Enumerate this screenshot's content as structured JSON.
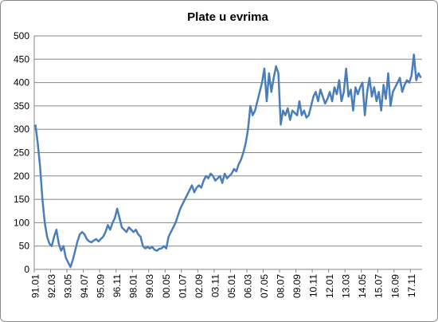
{
  "chart_data": {
    "type": "line",
    "title": "Plate u evrima",
    "categories": [
      "91.01",
      null,
      null,
      null,
      null,
      null,
      null,
      "92.03",
      null,
      null,
      null,
      null,
      null,
      null,
      "93.05",
      null,
      null,
      null,
      null,
      null,
      null,
      "94.07",
      null,
      null,
      null,
      null,
      null,
      null,
      "95.09",
      null,
      null,
      null,
      null,
      null,
      null,
      "96.11",
      null,
      null,
      null,
      null,
      null,
      null,
      "98.01",
      null,
      null,
      null,
      null,
      null,
      null,
      "99.03",
      null,
      null,
      null,
      null,
      null,
      null,
      "00.05",
      null,
      null,
      null,
      null,
      null,
      null,
      "01.07",
      null,
      null,
      null,
      null,
      null,
      null,
      "02.09",
      null,
      null,
      null,
      null,
      null,
      null,
      "03.11",
      null,
      null,
      null,
      null,
      null,
      null,
      "05.01",
      null,
      null,
      null,
      null,
      null,
      null,
      "06.03",
      null,
      null,
      null,
      null,
      null,
      null,
      "07.05",
      null,
      null,
      null,
      null,
      null,
      null,
      "08.07",
      null,
      null,
      null,
      null,
      null,
      null,
      "09.09",
      null,
      null,
      null,
      null,
      null,
      null,
      "10.11",
      null,
      null,
      null,
      null,
      null,
      null,
      "12.01",
      null,
      null,
      null,
      null,
      null,
      null,
      "13.03",
      null,
      null,
      null,
      null,
      null,
      null,
      "14.05",
      null,
      null,
      null,
      null,
      null,
      null,
      "15.07",
      null,
      null,
      null,
      null,
      null,
      null,
      "16.09",
      null,
      null,
      null,
      null,
      null,
      null,
      "17.11",
      null,
      null,
      null,
      null
    ],
    "values": [
      310,
      270,
      220,
      150,
      100,
      70,
      55,
      50,
      70,
      85,
      55,
      40,
      50,
      25,
      15,
      5,
      20,
      40,
      60,
      75,
      80,
      75,
      65,
      60,
      58,
      62,
      65,
      60,
      65,
      70,
      80,
      95,
      85,
      100,
      110,
      130,
      110,
      90,
      85,
      80,
      90,
      85,
      80,
      85,
      75,
      70,
      50,
      45,
      48,
      45,
      48,
      42,
      40,
      44,
      45,
      50,
      45,
      70,
      80,
      90,
      100,
      115,
      130,
      140,
      150,
      160,
      170,
      180,
      165,
      175,
      180,
      175,
      190,
      200,
      195,
      205,
      200,
      190,
      195,
      200,
      185,
      205,
      195,
      200,
      205,
      215,
      210,
      225,
      235,
      250,
      270,
      300,
      350,
      330,
      340,
      360,
      380,
      400,
      430,
      360,
      420,
      380,
      410,
      435,
      420,
      310,
      340,
      330,
      345,
      320,
      340,
      335,
      330,
      360,
      330,
      340,
      325,
      330,
      350,
      370,
      380,
      360,
      385,
      370,
      355,
      365,
      380,
      360,
      390,
      375,
      405,
      360,
      380,
      430,
      370,
      385,
      340,
      390,
      375,
      390,
      400,
      330,
      380,
      410,
      370,
      390,
      360,
      380,
      340,
      395,
      365,
      420,
      350,
      380,
      390,
      400,
      410,
      380,
      395,
      405,
      400,
      415,
      460,
      405,
      420,
      410
    ],
    "color": "#4a7ebb",
    "ylim": [
      0,
      500
    ],
    "yticks": [
      0,
      50,
      100,
      150,
      200,
      250,
      300,
      350,
      400,
      450,
      500
    ],
    "grid": true
  }
}
